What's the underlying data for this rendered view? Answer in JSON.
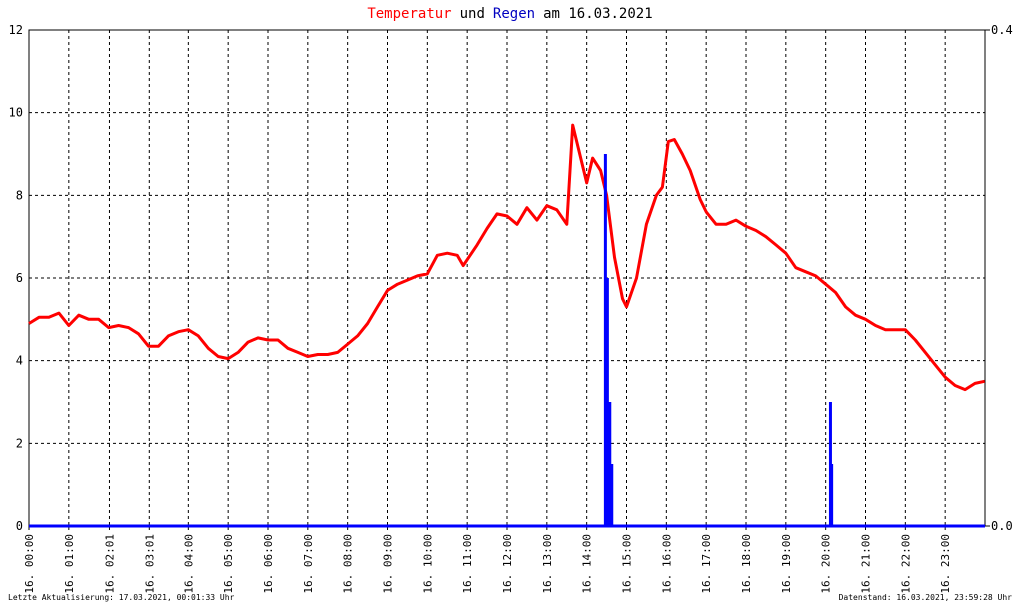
{
  "chart_data": {
    "type": "line",
    "title": [
      "Temperatur",
      "und",
      "Regen",
      "am 16.03.2021"
    ],
    "title_colors": [
      "#ff0000",
      "#000000",
      "#0000c0",
      "#000000"
    ],
    "xlim": [
      0,
      24
    ],
    "xticks": [
      {
        "value": 0,
        "label": "16. 00:00"
      },
      {
        "value": 1,
        "label": "16. 01:00"
      },
      {
        "value": 2.02,
        "label": "16. 02:01"
      },
      {
        "value": 3.02,
        "label": "16. 03:01"
      },
      {
        "value": 4,
        "label": "16. 04:00"
      },
      {
        "value": 5,
        "label": "16. 05:00"
      },
      {
        "value": 6,
        "label": "16. 06:00"
      },
      {
        "value": 7,
        "label": "16. 07:00"
      },
      {
        "value": 8,
        "label": "16. 08:00"
      },
      {
        "value": 9,
        "label": "16. 09:00"
      },
      {
        "value": 10,
        "label": "16. 10:00"
      },
      {
        "value": 11,
        "label": "16. 11:00"
      },
      {
        "value": 12,
        "label": "16. 12:00"
      },
      {
        "value": 13,
        "label": "16. 13:00"
      },
      {
        "value": 14,
        "label": "16. 14:00"
      },
      {
        "value": 15,
        "label": "16. 15:00"
      },
      {
        "value": 16,
        "label": "16. 16:00"
      },
      {
        "value": 17,
        "label": "16. 17:00"
      },
      {
        "value": 18,
        "label": "16. 18:00"
      },
      {
        "value": 19,
        "label": "16. 19:00"
      },
      {
        "value": 20,
        "label": "16. 20:00"
      },
      {
        "value": 21,
        "label": "16. 21:00"
      },
      {
        "value": 22,
        "label": "16. 22:00"
      },
      {
        "value": 23,
        "label": "16. 23:00"
      }
    ],
    "ylim": [
      0,
      12
    ],
    "yticks": [
      0,
      2,
      4,
      6,
      8,
      10,
      12
    ],
    "y2lim": [
      0,
      0.4
    ],
    "y2ticks": [
      {
        "value": 0,
        "label": "0.0"
      },
      {
        "value": 0.4,
        "label": "0.4"
      }
    ],
    "grid": true,
    "series": [
      {
        "name": "Temperatur",
        "color": "#ff0000",
        "x": [
          0,
          0.25,
          0.5,
          0.75,
          1,
          1.25,
          1.5,
          1.75,
          2,
          2.25,
          2.5,
          2.75,
          3,
          3.25,
          3.5,
          3.75,
          4,
          4.25,
          4.5,
          4.75,
          5,
          5.25,
          5.5,
          5.75,
          6,
          6.25,
          6.5,
          6.75,
          7,
          7.25,
          7.5,
          7.75,
          8,
          8.25,
          8.5,
          8.75,
          9,
          9.25,
          9.5,
          9.75,
          10,
          10.25,
          10.5,
          10.75,
          10.9,
          11.25,
          11.5,
          11.75,
          12,
          12.25,
          12.5,
          12.75,
          13,
          13.25,
          13.5,
          13.65,
          14,
          14.15,
          14.35,
          14.5,
          14.7,
          14.9,
          15,
          15.25,
          15.5,
          15.75,
          15.9,
          16.05,
          16.2,
          16.4,
          16.6,
          16.85,
          17,
          17.25,
          17.5,
          17.75,
          18,
          18.25,
          18.5,
          18.75,
          19,
          19.25,
          19.5,
          19.75,
          20,
          20.25,
          20.5,
          20.75,
          21,
          21.25,
          21.5,
          21.75,
          22,
          22.25,
          22.5,
          22.75,
          23,
          23.25,
          23.5,
          23.75,
          23.99
        ],
        "values": [
          4.9,
          5.05,
          5.05,
          5.15,
          4.85,
          5.1,
          5.0,
          5.0,
          4.8,
          4.85,
          4.8,
          4.65,
          4.35,
          4.35,
          4.6,
          4.7,
          4.75,
          4.6,
          4.3,
          4.1,
          4.05,
          4.2,
          4.45,
          4.55,
          4.5,
          4.5,
          4.3,
          4.2,
          4.1,
          4.15,
          4.15,
          4.2,
          4.4,
          4.6,
          4.9,
          5.3,
          5.7,
          5.85,
          5.95,
          6.05,
          6.1,
          6.55,
          6.6,
          6.55,
          6.3,
          6.8,
          7.2,
          7.55,
          7.5,
          7.3,
          7.7,
          7.4,
          7.75,
          7.65,
          7.3,
          9.7,
          8.3,
          8.9,
          8.6,
          8.0,
          6.5,
          5.5,
          5.3,
          6.0,
          7.3,
          8.0,
          8.2,
          9.3,
          9.35,
          9.0,
          8.6,
          7.9,
          7.6,
          7.3,
          7.3,
          7.4,
          7.25,
          7.15,
          7.0,
          6.8,
          6.6,
          6.25,
          6.15,
          6.05,
          5.85,
          5.65,
          5.3,
          5.1,
          5.0,
          4.85,
          4.75,
          4.75,
          4.75,
          4.5,
          4.2,
          3.9,
          3.6,
          3.4,
          3.3,
          3.45,
          3.5
        ]
      },
      {
        "name": "Regen",
        "color": "#0000ff",
        "axis": "y2",
        "x": [
          14.47,
          14.52,
          14.58,
          14.63,
          20.12,
          20.15
        ],
        "values": [
          0.3,
          0.2,
          0.1,
          0.05,
          0.1,
          0.05
        ]
      }
    ],
    "footer_left": "Letzte Aktualisierung: 17.03.2021, 00:01:33 Uhr",
    "footer_right": "Datenstand: 16.03.2021, 23:59:28 Uhr"
  }
}
